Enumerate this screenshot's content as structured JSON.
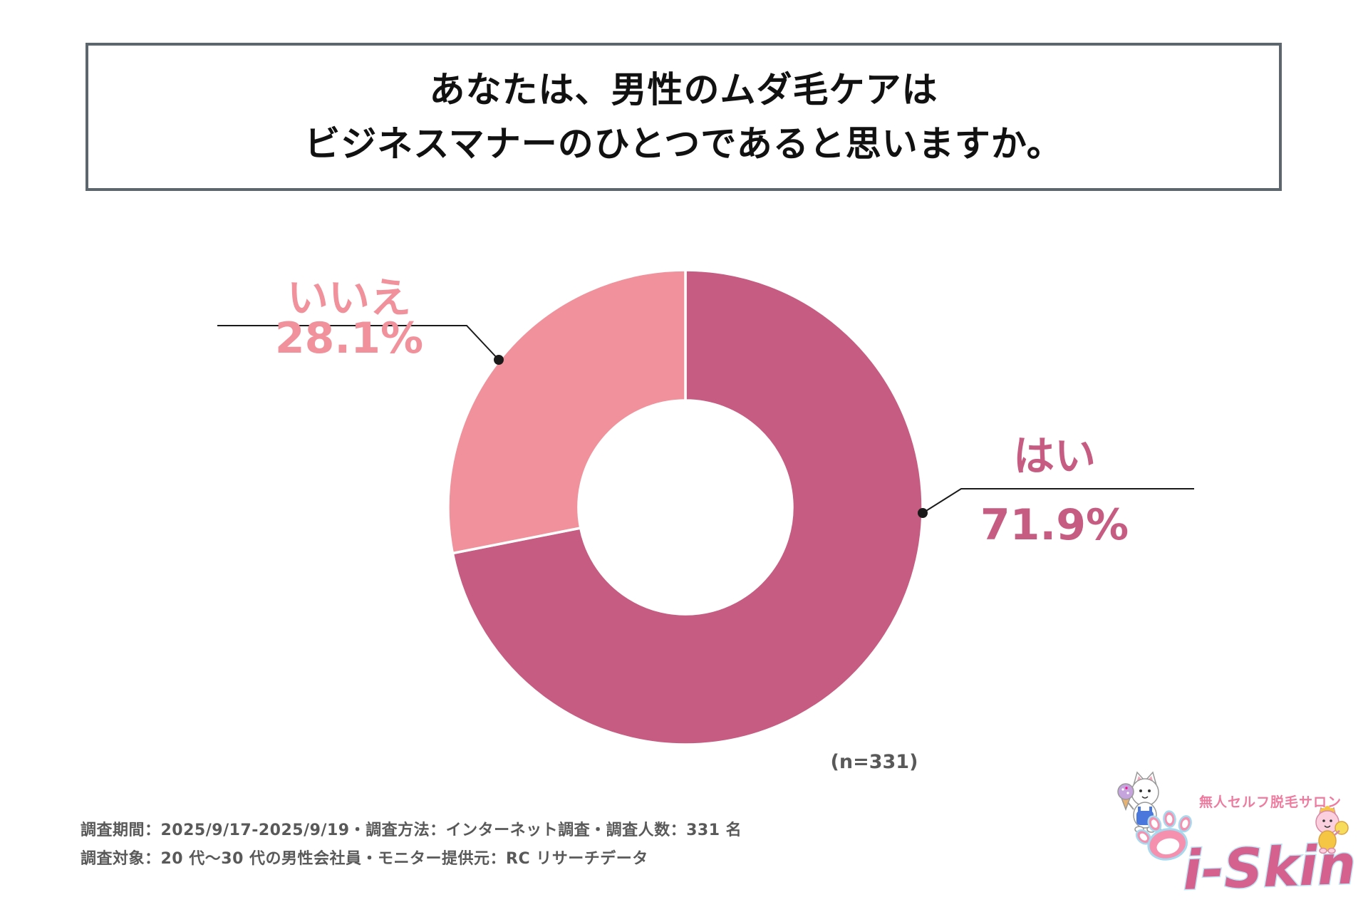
{
  "title": {
    "line1": "あなたは、男性のムダ毛ケアは",
    "line2": "ビジネスマナーのひとつであると思いますか。"
  },
  "chart_data": {
    "type": "pie",
    "subtype": "donut",
    "categories": [
      "はい",
      "いいえ"
    ],
    "values": [
      71.9,
      28.1
    ],
    "value_labels": [
      "71.9%",
      "28.1%"
    ],
    "colors": [
      "#C65C82",
      "#F0919B"
    ],
    "start_angle_deg": 0,
    "direction": "clockwise",
    "annotation": "(n=331)",
    "legend_position": "callout-labels",
    "title": "あなたは、男性のムダ毛ケアはビジネスマナーのひとつであると思いますか。"
  },
  "footer": {
    "line1": "調査期間：2025/9/17-2025/9/19・調査方法：インターネット調査・調査人数：331 名",
    "line2": "調査対象：20 代〜30 代の男性会社員・モニター提供元：RC リサーチデータ"
  },
  "logo": {
    "tagline": "無人セルフ脱毛サロン",
    "brand": "i-Skin",
    "brand_color": "#D5618F",
    "outline_color": "#BFE4F3"
  }
}
